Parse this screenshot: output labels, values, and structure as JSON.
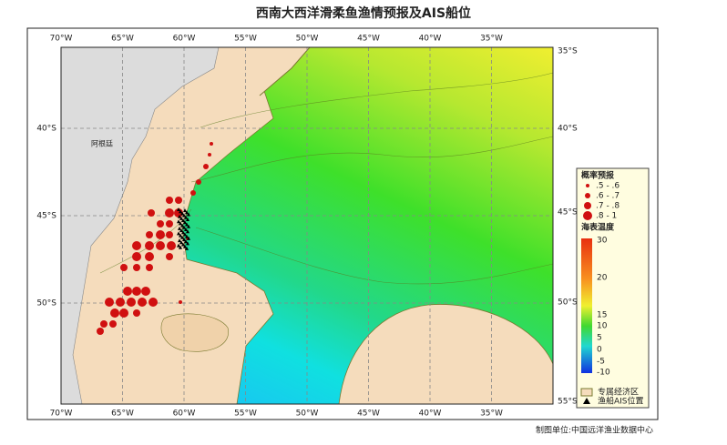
{
  "title": "西南大西洋滑柔鱼渔情预报及AIS船位",
  "axes": {
    "lon_labels": [
      "70°W",
      "65°W",
      "60°W",
      "55°W",
      "50°W",
      "45°W",
      "40°W",
      "35°W"
    ],
    "lat_labels_left": [
      "40°S",
      "45°S",
      "50°S"
    ],
    "lat_labels_right": [
      "35°S",
      "40°S",
      "45°S",
      "50°S",
      "55°S"
    ]
  },
  "map_labels": {
    "country": "阿根廷"
  },
  "legend": {
    "prob_title": "概率预报",
    "prob_classes": [
      ".5 - .6",
      ".6 - .7",
      ".7 - .8",
      ".8 - 1"
    ],
    "sst_title": "海表温度",
    "sst_ticks": [
      30,
      20,
      15,
      10,
      5,
      0,
      -5,
      -10
    ],
    "eez": "专属经济区",
    "ais": "渔船AIS位置"
  },
  "footer": "制图单位:中国远洋渔业数据中心"
}
